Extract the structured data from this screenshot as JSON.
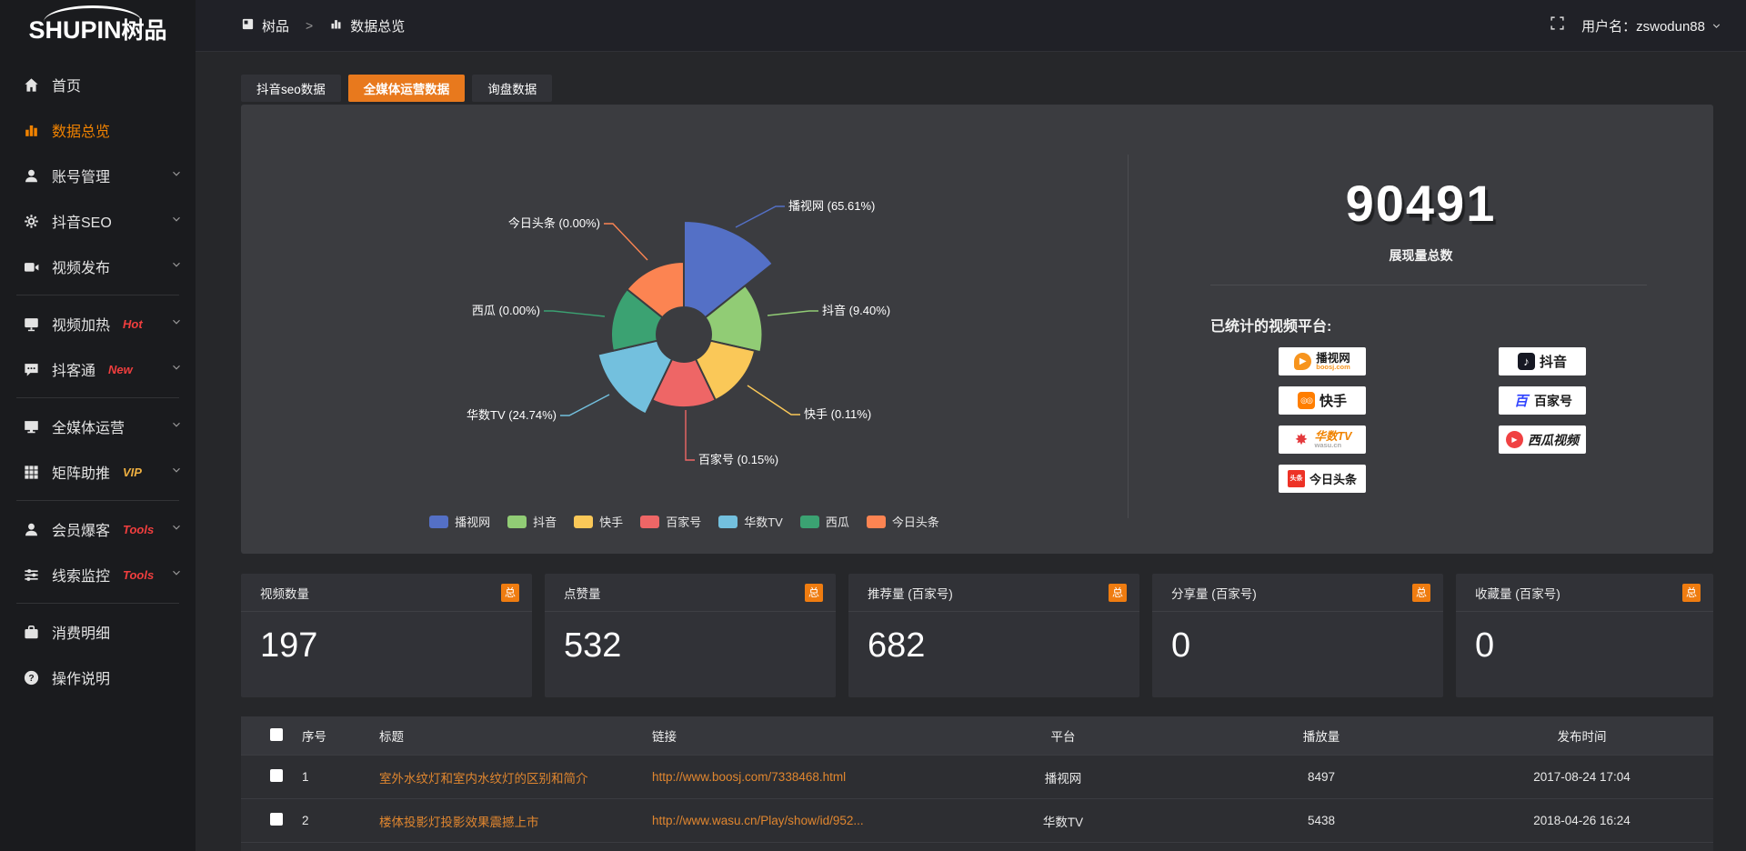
{
  "accent": "#e8791d",
  "sidebar": {
    "logo_main": "SHUPIN",
    "logo_suffix": "树品",
    "items": [
      {
        "id": "home",
        "label": "首页",
        "icon": "home",
        "active": false,
        "chevron": false,
        "badge": null,
        "divider_after": false
      },
      {
        "id": "data-overview",
        "label": "数据总览",
        "icon": "bar-chart",
        "active": true,
        "chevron": false,
        "badge": null,
        "divider_after": false
      },
      {
        "id": "account-manage",
        "label": "账号管理",
        "icon": "user",
        "active": false,
        "chevron": true,
        "badge": null,
        "divider_after": false
      },
      {
        "id": "douyin-seo",
        "label": "抖音SEO",
        "icon": "gear",
        "active": false,
        "chevron": true,
        "badge": null,
        "divider_after": false
      },
      {
        "id": "video-publish",
        "label": "视频发布",
        "icon": "video",
        "active": false,
        "chevron": true,
        "badge": null,
        "divider_after": true
      },
      {
        "id": "video-heat",
        "label": "视频加热",
        "icon": "monitor",
        "active": false,
        "chevron": true,
        "badge": "Hot",
        "badge_color": "#f03e3e",
        "divider_after": false
      },
      {
        "id": "doukeTong",
        "label": "抖客通",
        "icon": "chat",
        "active": false,
        "chevron": true,
        "badge": "New",
        "badge_color": "#f03e3e",
        "divider_after": true
      },
      {
        "id": "media-operation",
        "label": "全媒体运营",
        "icon": "display",
        "active": false,
        "chevron": true,
        "badge": null,
        "divider_after": false
      },
      {
        "id": "matrix-boost",
        "label": "矩阵助推",
        "icon": "grid",
        "active": false,
        "chevron": true,
        "badge": "VIP",
        "badge_color": "#efb041",
        "divider_after": true
      },
      {
        "id": "member-baoke",
        "label": "会员爆客",
        "icon": "user",
        "active": false,
        "chevron": true,
        "badge": "Tools",
        "badge_color": "#f03e3e",
        "divider_after": false
      },
      {
        "id": "clue-monitor",
        "label": "线索监控",
        "icon": "sliders",
        "active": false,
        "chevron": true,
        "badge": "Tools",
        "badge_color": "#f03e3e",
        "divider_after": true
      },
      {
        "id": "expense-detail",
        "label": "消费明细",
        "icon": "expense",
        "active": false,
        "chevron": false,
        "badge": null,
        "divider_after": false
      },
      {
        "id": "operation-guide",
        "label": "操作说明",
        "icon": "help",
        "active": false,
        "chevron": false,
        "badge": null,
        "divider_after": false
      }
    ]
  },
  "topbar": {
    "breadcrumb": [
      {
        "label": "树品",
        "icon": "app"
      },
      {
        "label": "数据总览",
        "icon": "bar-chart"
      }
    ],
    "separator": ">",
    "username": "用户名：zswodun88"
  },
  "tabs": [
    {
      "label": "抖音seo数据",
      "active": false
    },
    {
      "label": "全媒体运营数据",
      "active": true
    },
    {
      "label": "询盘数据",
      "active": false
    }
  ],
  "chart_data": {
    "type": "pie",
    "variant": "nightingale-rose-donut",
    "categories": [
      "播视网",
      "抖音",
      "快手",
      "百家号",
      "华数TV",
      "西瓜",
      "今日头条"
    ],
    "values": [
      65.61,
      9.4,
      0.11,
      0.15,
      24.74,
      0.0,
      0.0
    ],
    "unit": "%",
    "labels": [
      "播视网 (65.61%)",
      "抖音 (9.40%)",
      "快手 (0.11%)",
      "百家号 (0.15%)",
      "华数TV (24.74%)",
      "西瓜 (0.00%)",
      "今日头条 (0.00%)"
    ],
    "colors": [
      "#5470c6",
      "#91cc75",
      "#fac858",
      "#ee6666",
      "#73c0de",
      "#3ba272",
      "#fc8452"
    ],
    "legend_position": "bottom",
    "grid": false
  },
  "summary": {
    "total_value": "90491",
    "total_label": "展现量总数",
    "platforms_title": "已统计的视频平台:",
    "platforms_left": [
      {
        "id": "boosj",
        "name": "播视网",
        "sub": "boosj.com"
      },
      {
        "id": "kuaishou",
        "name": "快手",
        "sub": ""
      },
      {
        "id": "wasu",
        "name": "华数TV",
        "sub": "wasu.cn"
      },
      {
        "id": "toutiao",
        "name": "今日头条",
        "sub": ""
      }
    ],
    "platforms_right": [
      {
        "id": "douyin",
        "name": "抖音",
        "sub": ""
      },
      {
        "id": "baijiahao",
        "name": "百家号",
        "sub": ""
      },
      {
        "id": "xigua",
        "name": "西瓜视频",
        "sub": ""
      }
    ]
  },
  "stat_cards": [
    {
      "title": "视频数量",
      "badge": "总",
      "value": "197"
    },
    {
      "title": "点赞量",
      "badge": "总",
      "value": "532"
    },
    {
      "title": "推荐量 (百家号)",
      "badge": "总",
      "value": "682"
    },
    {
      "title": "分享量 (百家号)",
      "badge": "总",
      "value": "0"
    },
    {
      "title": "收藏量 (百家号)",
      "badge": "总",
      "value": "0"
    }
  ],
  "table": {
    "columns": [
      "序号",
      "标题",
      "链接",
      "平台",
      "播放量",
      "发布时间"
    ],
    "rows": [
      {
        "no": "1",
        "title": "室外水纹灯和室内水纹灯的区别和简介",
        "link": "http://www.boosj.com/7338468.html",
        "platform": "播视网",
        "plays": "8497",
        "time": "2017-08-24 17:04"
      },
      {
        "no": "2",
        "title": "楼体投影灯投影效果震撼上市",
        "link": "http://www.wasu.cn/Play/show/id/952...",
        "platform": "华数TV",
        "plays": "5438",
        "time": "2018-04-26 16:24"
      }
    ]
  }
}
